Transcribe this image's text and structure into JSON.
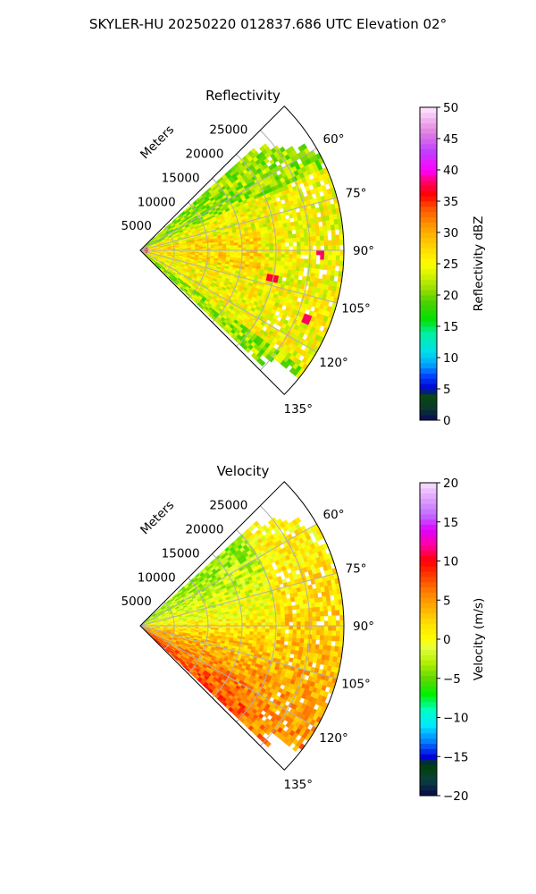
{
  "suptitle": "SKYLER-HU  20250220  012837.686 UTC Elevation 02°",
  "chart_data": [
    {
      "type": "heatmap",
      "subtype": "polar-sector",
      "title": "Reflectivity",
      "radial_label": "Meters",
      "r_ticks": [
        5000,
        10000,
        15000,
        20000,
        25000
      ],
      "r_tick_labels": [
        "5000",
        "10000",
        "15000",
        "20000",
        "25000"
      ],
      "rlim": [
        0,
        30000
      ],
      "theta_ticks": [
        60,
        75,
        90,
        105,
        120,
        135
      ],
      "theta_tick_labels": [
        "60°",
        "75°",
        "90°",
        "105°",
        "120°",
        "135°"
      ],
      "theta_range": [
        45,
        135
      ],
      "grid": true,
      "colorbar": {
        "label": "Reflectivity dBZ",
        "min": 0,
        "max": 50,
        "ticks": [
          0,
          5,
          10,
          15,
          20,
          25,
          30,
          35,
          40,
          45,
          50
        ],
        "tick_labels": [
          "0",
          "5",
          "10",
          "15",
          "20",
          "25",
          "30",
          "35",
          "40",
          "45",
          "50"
        ],
        "colormap": "NWSRef"
      },
      "field_summary": {
        "typical_range": [
          20,
          32
        ],
        "cores": [
          {
            "azimuth_deg": 92,
            "range_m": 26500,
            "value": 38
          },
          {
            "azimuth_deg": 102,
            "range_m": 20000,
            "value": 37
          },
          {
            "azimuth_deg": 113,
            "range_m": 26500,
            "value": 38
          }
        ]
      }
    },
    {
      "type": "heatmap",
      "subtype": "polar-sector",
      "title": "Velocity",
      "radial_label": "Meters",
      "r_ticks": [
        5000,
        10000,
        15000,
        20000,
        25000
      ],
      "r_tick_labels": [
        "5000",
        "10000",
        "15000",
        "20000",
        "25000"
      ],
      "rlim": [
        0,
        30000
      ],
      "theta_ticks": [
        60,
        75,
        90,
        105,
        120,
        135
      ],
      "theta_tick_labels": [
        "60°",
        "75°",
        "90°",
        "105°",
        "120°",
        "135°"
      ],
      "theta_range": [
        45,
        135
      ],
      "grid": true,
      "colorbar": {
        "label": "Velocity (m/s)",
        "min": -20,
        "max": 20,
        "ticks": [
          -20,
          -15,
          -10,
          -5,
          0,
          5,
          10,
          15,
          20
        ],
        "tick_labels": [
          "−20",
          "−15",
          "−10",
          "−5",
          "0",
          "5",
          "10",
          "15",
          "20"
        ],
        "colormap": "NWSVel"
      },
      "field_summary": {
        "typical_range": [
          -6,
          8
        ],
        "north_sector_mean": -4,
        "south_sector_mean": 6,
        "outer_range_mean": 4
      }
    }
  ]
}
